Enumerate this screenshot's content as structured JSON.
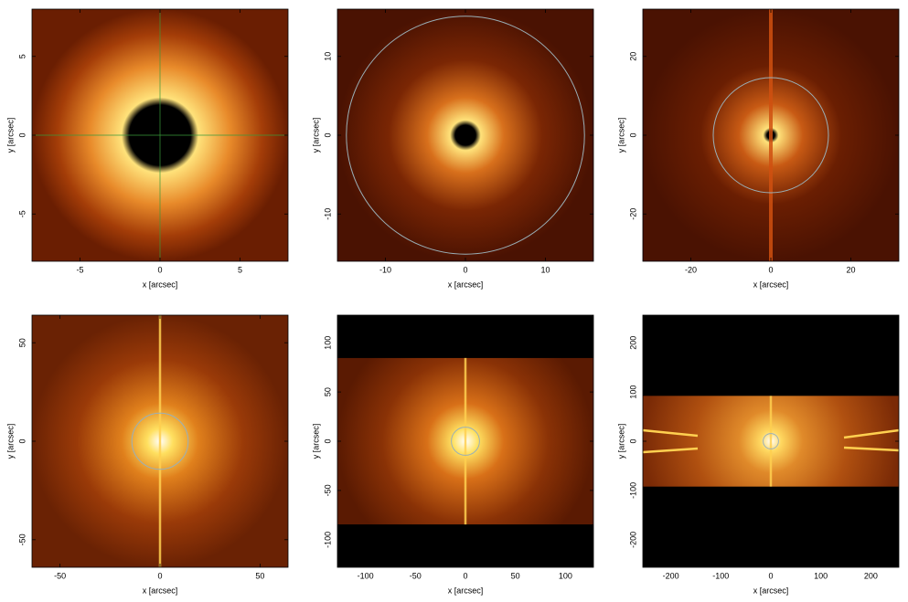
{
  "chart_data": [
    {
      "type": "image",
      "xlabel": "x [arcsec]",
      "ylabel": "y [arcsec]",
      "xlim": [
        -8,
        8
      ],
      "ylim": [
        -8,
        8
      ],
      "xticks": [
        -5,
        0,
        5
      ],
      "yticks": [
        -5,
        0,
        5
      ]
    },
    {
      "type": "image",
      "xlabel": "x [arcsec]",
      "ylabel": "y [arcsec]",
      "xlim": [
        -16,
        16
      ],
      "ylim": [
        -16,
        16
      ],
      "xticks": [
        -10,
        0,
        10
      ],
      "yticks": [
        -10,
        0,
        10
      ]
    },
    {
      "type": "image",
      "xlabel": "x [arcsec]",
      "ylabel": "y [arcsec]",
      "xlim": [
        -32,
        32
      ],
      "ylim": [
        -32,
        32
      ],
      "xticks": [
        -20,
        0,
        20
      ],
      "yticks": [
        -20,
        0,
        20
      ]
    },
    {
      "type": "image",
      "xlabel": "x [arcsec]",
      "ylabel": "y [arcsec]",
      "xlim": [
        -64,
        64
      ],
      "ylim": [
        -64,
        64
      ],
      "xticks": [
        -50,
        0,
        50
      ],
      "yticks": [
        -50,
        0,
        50
      ]
    },
    {
      "type": "image",
      "xlabel": "x [arcsec]",
      "ylabel": "y [arcsec]",
      "xlim": [
        -128,
        128
      ],
      "ylim": [
        -128,
        128
      ],
      "xticks": [
        -100,
        -50,
        0,
        50,
        100
      ],
      "yticks": [
        -100,
        -50,
        0,
        50,
        100
      ]
    },
    {
      "type": "image",
      "xlabel": "x [arcsec]",
      "ylabel": "y [arcsec]",
      "xlim": [
        -256,
        256
      ],
      "ylim": [
        -256,
        256
      ],
      "xticks": [
        -200,
        -100,
        0,
        100,
        200
      ],
      "yticks": [
        -200,
        -100,
        0,
        100,
        200
      ]
    }
  ]
}
